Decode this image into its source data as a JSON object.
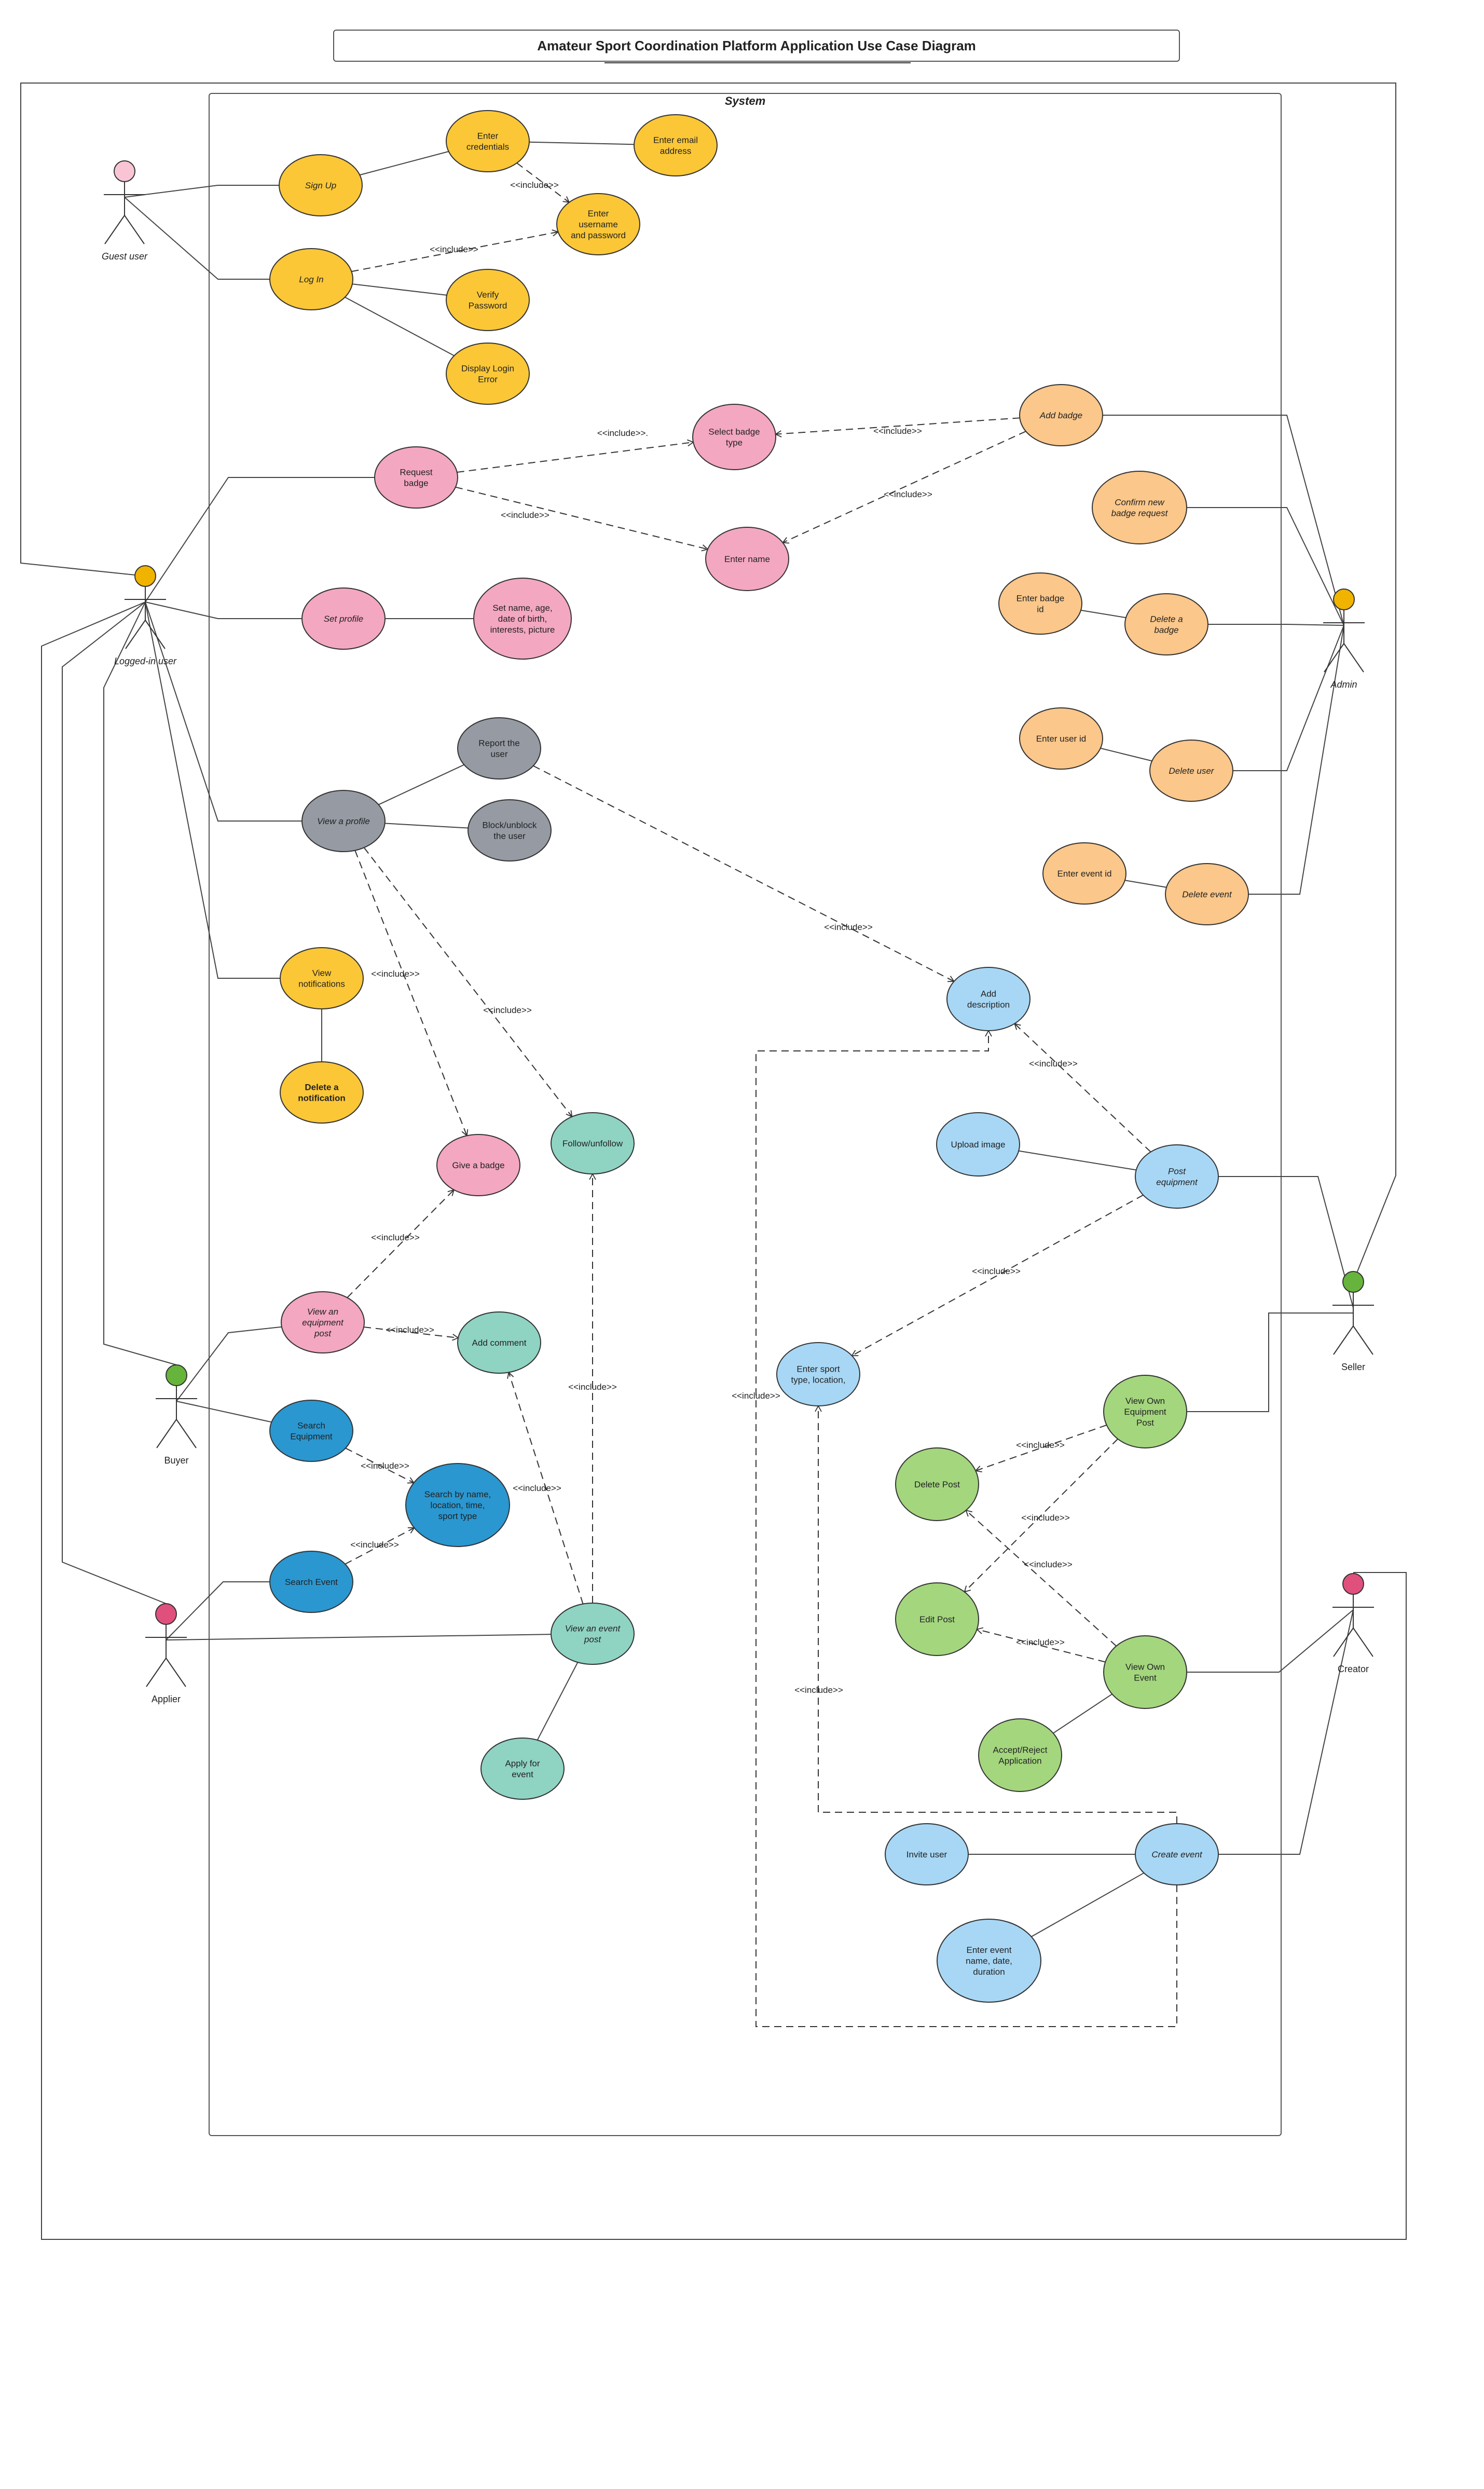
{
  "title": "Amateur Sport Coordination Platform Application Use Case Diagram",
  "system_label": "System",
  "colors": {
    "yellow": "#fbc737",
    "pink": "#f4a7c0",
    "gray": "#959aa3",
    "teal": "#8fd3c3",
    "blue": "#2a97d0",
    "lightblue": "#a7d7f5",
    "orange": "#fbc78a",
    "green": "#a4d67e",
    "actor_guest": "#f9c5d5",
    "actor_yellow": "#f0b400",
    "actor_green": "#67b43c",
    "actor_pink": "#e0507d"
  },
  "actors": [
    {
      "id": "guest",
      "label": "Guest user",
      "color": "actor_guest"
    },
    {
      "id": "logged",
      "label": "Logged-in user",
      "color": "actor_yellow"
    },
    {
      "id": "buyer",
      "label": "Buyer",
      "color": "actor_green"
    },
    {
      "id": "applier",
      "label": "Applier",
      "color": "actor_pink"
    },
    {
      "id": "admin",
      "label": "Admin",
      "color": "actor_yellow"
    },
    {
      "id": "seller",
      "label": "Seller",
      "color": "actor_green"
    },
    {
      "id": "creator",
      "label": "Creator",
      "color": "actor_pink"
    }
  ],
  "usecases": [
    {
      "id": "signup",
      "lines": [
        "Sign Up"
      ],
      "color": "yellow",
      "italic": true
    },
    {
      "id": "login",
      "lines": [
        "Log In"
      ],
      "color": "yellow",
      "italic": true
    },
    {
      "id": "enter_cred",
      "lines": [
        "Enter",
        "credentials"
      ],
      "color": "yellow"
    },
    {
      "id": "enter_email",
      "lines": [
        "Enter email",
        "address"
      ],
      "color": "yellow"
    },
    {
      "id": "enter_user_pass",
      "lines": [
        "Enter",
        "username",
        "and password"
      ],
      "color": "yellow"
    },
    {
      "id": "verify",
      "lines": [
        "Verify",
        "Password"
      ],
      "color": "yellow"
    },
    {
      "id": "login_err",
      "lines": [
        "Display Login",
        "Error"
      ],
      "color": "yellow"
    },
    {
      "id": "req_badge",
      "lines": [
        "Request",
        "badge"
      ],
      "color": "pink"
    },
    {
      "id": "sel_badge",
      "lines": [
        "Select badge",
        "type"
      ],
      "color": "pink"
    },
    {
      "id": "enter_name",
      "lines": [
        "Enter name"
      ],
      "color": "pink"
    },
    {
      "id": "set_profile",
      "lines": [
        "Set profile"
      ],
      "color": "pink",
      "italic": true
    },
    {
      "id": "set_details",
      "lines": [
        "Set name, age,",
        "date of birth,",
        "interests, picture"
      ],
      "color": "pink"
    },
    {
      "id": "view_profile",
      "lines": [
        "View a profile"
      ],
      "color": "gray",
      "italic": true
    },
    {
      "id": "report_user",
      "lines": [
        "Report the",
        "user"
      ],
      "color": "gray"
    },
    {
      "id": "block_user",
      "lines": [
        "Block/unblock",
        "the user"
      ],
      "color": "gray"
    },
    {
      "id": "view_notif",
      "lines": [
        "View",
        "notifications"
      ],
      "color": "yellow"
    },
    {
      "id": "del_notif",
      "lines": [
        "Delete a",
        "notification"
      ],
      "color": "yellow",
      "bold": true
    },
    {
      "id": "give_badge",
      "lines": [
        "Give a badge"
      ],
      "color": "pink"
    },
    {
      "id": "follow",
      "lines": [
        "Follow/unfollow"
      ],
      "color": "teal"
    },
    {
      "id": "view_equip_post",
      "lines": [
        "View an",
        "equipment",
        "post"
      ],
      "color": "pink",
      "italic": true
    },
    {
      "id": "add_comment",
      "lines": [
        "Add comment"
      ],
      "color": "teal"
    },
    {
      "id": "search_equip",
      "lines": [
        "Search",
        "Equipment"
      ],
      "color": "blue"
    },
    {
      "id": "search_by",
      "lines": [
        "Search by name,",
        "location, time,",
        "sport type"
      ],
      "color": "blue"
    },
    {
      "id": "search_event",
      "lines": [
        "Search Event"
      ],
      "color": "blue"
    },
    {
      "id": "view_event_post",
      "lines": [
        "View an event",
        "post"
      ],
      "color": "teal",
      "italic": true
    },
    {
      "id": "apply_event",
      "lines": [
        "Apply for",
        "event"
      ],
      "color": "teal"
    },
    {
      "id": "add_badge",
      "lines": [
        "Add badge"
      ],
      "color": "orange",
      "italic": true
    },
    {
      "id": "confirm_badge",
      "lines": [
        "Confirm new",
        "badge request"
      ],
      "color": "orange",
      "italic": true
    },
    {
      "id": "enter_badge_id",
      "lines": [
        "Enter badge",
        "id"
      ],
      "color": "orange"
    },
    {
      "id": "delete_badge",
      "lines": [
        "Delete a",
        "badge"
      ],
      "color": "orange",
      "italic": true
    },
    {
      "id": "enter_user_id",
      "lines": [
        "Enter user id"
      ],
      "color": "orange"
    },
    {
      "id": "delete_user",
      "lines": [
        "Delete user"
      ],
      "color": "orange",
      "italic": true
    },
    {
      "id": "enter_event_id",
      "lines": [
        "Enter event id"
      ],
      "color": "orange"
    },
    {
      "id": "delete_event",
      "lines": [
        "Delete event"
      ],
      "color": "orange",
      "italic": true
    },
    {
      "id": "add_desc",
      "lines": [
        "Add",
        "description"
      ],
      "color": "lightblue"
    },
    {
      "id": "upload_img",
      "lines": [
        "Upload image"
      ],
      "color": "lightblue"
    },
    {
      "id": "post_equip",
      "lines": [
        "Post",
        "equipment"
      ],
      "color": "lightblue",
      "italic": true
    },
    {
      "id": "enter_sport",
      "lines": [
        "Enter sport",
        "type, location,"
      ],
      "color": "lightblue"
    },
    {
      "id": "view_own_equip",
      "lines": [
        "View Own",
        "Equipment",
        "Post"
      ],
      "color": "green"
    },
    {
      "id": "delete_post",
      "lines": [
        "Delete Post"
      ],
      "color": "green"
    },
    {
      "id": "edit_post",
      "lines": [
        "Edit Post"
      ],
      "color": "green"
    },
    {
      "id": "view_own_event",
      "lines": [
        "View Own",
        "Event"
      ],
      "color": "green"
    },
    {
      "id": "accept_reject",
      "lines": [
        "Accept/Reject",
        "Application"
      ],
      "color": "green"
    },
    {
      "id": "invite_user",
      "lines": [
        "Invite user"
      ],
      "color": "lightblue"
    },
    {
      "id": "create_event",
      "lines": [
        "Create event"
      ],
      "color": "lightblue",
      "italic": true
    },
    {
      "id": "enter_event_details",
      "lines": [
        "Enter  event",
        "name, date,",
        "duration"
      ],
      "color": "lightblue"
    }
  ],
  "include_label": "<<include>>",
  "include_label_alt": "<<include>>."
}
